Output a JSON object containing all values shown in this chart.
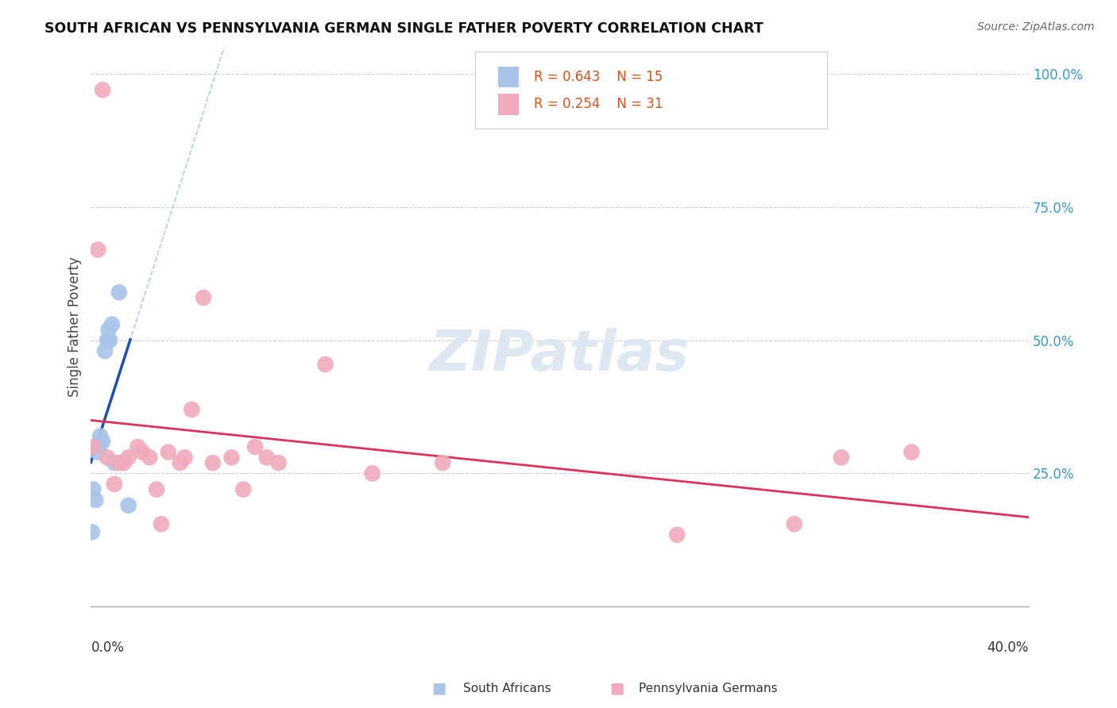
{
  "title": "SOUTH AFRICAN VS PENNSYLVANIA GERMAN SINGLE FATHER POVERTY CORRELATION CHART",
  "source": "Source: ZipAtlas.com",
  "ylabel": "Single Father Poverty",
  "legend_blue_r": "R = 0.643",
  "legend_blue_n": "N = 15",
  "legend_pink_r": "R = 0.254",
  "legend_pink_n": "N = 31",
  "legend_label_blue": "South Africans",
  "legend_label_pink": "Pennsylvania Germans",
  "blue_color": "#a8c4e8",
  "pink_color": "#f0aabb",
  "blue_line_color": "#1a50b0",
  "pink_line_color": "#e03060",
  "blue_dashed_color": "#90b8d8",
  "background_color": "#ffffff",
  "grid_color": "#ccccdd",
  "xlim": [
    0.0,
    0.4
  ],
  "ylim": [
    0.0,
    1.05
  ],
  "yticks": [
    0.0,
    0.25,
    0.5,
    0.75,
    1.0
  ],
  "ytick_labels": [
    "",
    "25.0%",
    "50.0%",
    "75.0%",
    "100.0%"
  ],
  "watermark_color": "#dde8f2",
  "watermark_fontsize": 52,
  "south_african_x": [
    0.0005,
    0.001,
    0.002,
    0.003,
    0.0035,
    0.004,
    0.005,
    0.006,
    0.007,
    0.0075,
    0.008,
    0.009,
    0.01,
    0.012,
    0.016
  ],
  "south_african_y": [
    0.14,
    0.22,
    0.2,
    0.29,
    0.3,
    0.32,
    0.31,
    0.48,
    0.5,
    0.52,
    0.5,
    0.53,
    0.27,
    0.59,
    0.19
  ],
  "penn_german_x": [
    0.001,
    0.003,
    0.005,
    0.007,
    0.01,
    0.012,
    0.014,
    0.016,
    0.02,
    0.022,
    0.025,
    0.028,
    0.03,
    0.033,
    0.038,
    0.04,
    0.043,
    0.048,
    0.052,
    0.06,
    0.065,
    0.07,
    0.075,
    0.08,
    0.1,
    0.12,
    0.15,
    0.25,
    0.3,
    0.32,
    0.35
  ],
  "penn_german_y": [
    0.3,
    0.67,
    0.97,
    0.28,
    0.23,
    0.27,
    0.27,
    0.28,
    0.3,
    0.29,
    0.28,
    0.22,
    0.155,
    0.29,
    0.27,
    0.28,
    0.37,
    0.58,
    0.27,
    0.28,
    0.22,
    0.3,
    0.28,
    0.27,
    0.455,
    0.25,
    0.27,
    0.135,
    0.155,
    0.28,
    0.29
  ]
}
